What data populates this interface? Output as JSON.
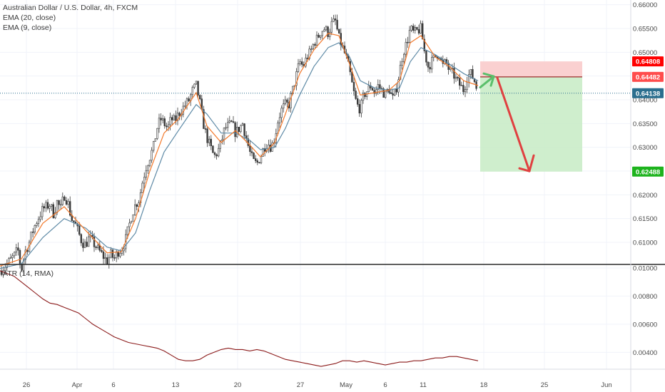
{
  "legend": {
    "symbol_line": "Australian Dollar / U.S. Dollar, 4h, FXCM",
    "ema20": "EMA (20, close)",
    "ema9": "EMA (9, close)",
    "atr": "ATR (14, RMA)"
  },
  "colors": {
    "up": "#3a3a3a",
    "down": "#3a3a3a",
    "up_fill": "#ffffff",
    "wick": "#3a3a3a",
    "ema_fast": "#f37a2c",
    "ema_slow": "#5e8aa6",
    "atr": "#8b1a1a",
    "grid": "#f0f3fa",
    "divider": "#2a2a2a",
    "stop_zone": "#f9c8c8",
    "target_zone": "#c7ebc4",
    "entry_line": "#9c2b2b",
    "arrow_up": "#5bbf6b",
    "arrow_down": "#e04040",
    "stop_tag": "#ff0000",
    "entry_tag": "#ff4d4d",
    "current_tag": "#2a6e8e",
    "target_tag": "#1db31d"
  },
  "chart_data": [
    {
      "type": "candlestick",
      "pair": "Australian Dollar / U.S. Dollar",
      "timeframe": "4h",
      "source": "FXCM",
      "ylim": [
        0.6055,
        0.661
      ],
      "y_ticks": [
        "0.66000",
        "0.65500",
        "0.65000",
        "0.64500",
        "0.64000",
        "0.63500",
        "0.63000",
        "0.62500",
        "0.62000",
        "0.61500",
        "0.61000"
      ],
      "x_tick_labels": [
        "26",
        "Apr",
        "6",
        "13",
        "20",
        "27",
        "May",
        "6",
        "11",
        "18",
        "25",
        "Jun"
      ],
      "price_tags": {
        "stop": "0.64808",
        "entry": "0.64482",
        "current": "0.64138",
        "target": "0.62488"
      },
      "price_levels": {
        "stop": 0.64808,
        "entry": 0.64482,
        "current": 0.64138,
        "target": 0.62488
      },
      "close_path": [
        [
          0,
          0.604
        ],
        [
          8,
          0.6052
        ],
        [
          15,
          0.6063
        ],
        [
          20,
          0.6072
        ],
        [
          25,
          0.6085
        ],
        [
          30,
          0.604
        ],
        [
          35,
          0.608
        ],
        [
          40,
          0.6095
        ],
        [
          45,
          0.612
        ],
        [
          50,
          0.614
        ],
        [
          55,
          0.6155
        ],
        [
          60,
          0.617
        ],
        [
          65,
          0.6175
        ],
        [
          70,
          0.618
        ],
        [
          75,
          0.616
        ],
        [
          80,
          0.6185
        ],
        [
          85,
          0.617
        ],
        [
          90,
          0.62
        ],
        [
          95,
          0.6185
        ],
        [
          100,
          0.615
        ],
        [
          105,
          0.614
        ],
        [
          110,
          0.612
        ],
        [
          115,
          0.61
        ],
        [
          120,
          0.6095
        ],
        [
          125,
          0.611
        ],
        [
          130,
          0.61
        ],
        [
          135,
          0.609
        ],
        [
          140,
          0.608
        ],
        [
          145,
          0.607
        ],
        [
          150,
          0.606
        ],
        [
          155,
          0.6075
        ],
        [
          160,
          0.6065
        ],
        [
          165,
          0.608
        ],
        [
          170,
          0.6085
        ],
        [
          175,
          0.61
        ],
        [
          180,
          0.613
        ],
        [
          185,
          0.616
        ],
        [
          190,
          0.618
        ],
        [
          195,
          0.619
        ],
        [
          200,
          0.623
        ],
        [
          205,
          0.626
        ],
        [
          210,
          0.628
        ],
        [
          215,
          0.63
        ],
        [
          220,
          0.634
        ],
        [
          225,
          0.636
        ],
        [
          230,
          0.635
        ],
        [
          235,
          0.634
        ],
        [
          240,
          0.636
        ],
        [
          245,
          0.6355
        ],
        [
          250,
          0.637
        ],
        [
          255,
          0.638
        ],
        [
          260,
          0.639
        ],
        [
          265,
          0.64
        ],
        [
          270,
          0.642
        ],
        [
          275,
          0.643
        ],
        [
          280,
          0.6395
        ],
        [
          285,
          0.635
        ],
        [
          290,
          0.632
        ],
        [
          295,
          0.63
        ],
        [
          300,
          0.628
        ],
        [
          305,
          0.629
        ],
        [
          310,
          0.631
        ],
        [
          315,
          0.634
        ],
        [
          320,
          0.6345
        ],
        [
          325,
          0.635
        ],
        [
          330,
          0.633
        ],
        [
          335,
          0.634
        ],
        [
          340,
          0.635
        ],
        [
          345,
          0.632
        ],
        [
          350,
          0.629
        ],
        [
          355,
          0.627
        ],
        [
          360,
          0.6265
        ],
        [
          365,
          0.628
        ],
        [
          370,
          0.63
        ],
        [
          375,
          0.631
        ],
        [
          380,
          0.63
        ],
        [
          385,
          0.632
        ],
        [
          390,
          0.636
        ],
        [
          395,
          0.638
        ],
        [
          400,
          0.639
        ],
        [
          405,
          0.639
        ],
        [
          410,
          0.642
        ],
        [
          415,
          0.645
        ],
        [
          420,
          0.648
        ],
        [
          425,
          0.647
        ],
        [
          430,
          0.649
        ],
        [
          435,
          0.65
        ],
        [
          440,
          0.652
        ],
        [
          445,
          0.653
        ],
        [
          450,
          0.6545
        ],
        [
          455,
          0.655
        ],
        [
          460,
          0.654
        ],
        [
          465,
          0.656
        ],
        [
          470,
          0.6565
        ],
        [
          475,
          0.653
        ],
        [
          480,
          0.651
        ],
        [
          485,
          0.649
        ],
        [
          490,
          0.646
        ],
        [
          495,
          0.642
        ],
        [
          500,
          0.639
        ],
        [
          505,
          0.638
        ],
        [
          510,
          0.641
        ],
        [
          515,
          0.642
        ],
        [
          520,
          0.643
        ],
        [
          525,
          0.6415
        ],
        [
          530,
          0.643
        ],
        [
          535,
          0.642
        ],
        [
          540,
          0.641
        ],
        [
          545,
          0.6425
        ],
        [
          550,
          0.64
        ],
        [
          555,
          0.642
        ],
        [
          560,
          0.646
        ],
        [
          565,
          0.65
        ],
        [
          570,
          0.652
        ],
        [
          575,
          0.655
        ],
        [
          580,
          0.654
        ],
        [
          585,
          0.6545
        ],
        [
          590,
          0.655
        ],
        [
          595,
          0.65
        ],
        [
          600,
          0.647
        ],
        [
          605,
          0.648
        ],
        [
          610,
          0.649
        ],
        [
          615,
          0.65
        ],
        [
          620,
          0.647
        ],
        [
          625,
          0.648
        ],
        [
          630,
          0.646
        ],
        [
          635,
          0.6455
        ],
        [
          640,
          0.644
        ],
        [
          645,
          0.643
        ],
        [
          650,
          0.642
        ],
        [
          655,
          0.645
        ],
        [
          660,
          0.6455
        ],
        [
          665,
          0.644
        ],
        [
          670,
          0.6414
        ]
      ],
      "ema_fast": [
        [
          0,
          0.605
        ],
        [
          30,
          0.6065
        ],
        [
          60,
          0.614
        ],
        [
          90,
          0.6175
        ],
        [
          120,
          0.6125
        ],
        [
          150,
          0.6078
        ],
        [
          170,
          0.608
        ],
        [
          190,
          0.615
        ],
        [
          210,
          0.625
        ],
        [
          230,
          0.633
        ],
        [
          250,
          0.636
        ],
        [
          275,
          0.6415
        ],
        [
          290,
          0.6345
        ],
        [
          310,
          0.631
        ],
        [
          330,
          0.6335
        ],
        [
          350,
          0.6305
        ],
        [
          365,
          0.628
        ],
        [
          385,
          0.631
        ],
        [
          400,
          0.637
        ],
        [
          420,
          0.6455
        ],
        [
          440,
          0.6505
        ],
        [
          460,
          0.654
        ],
        [
          475,
          0.6535
        ],
        [
          490,
          0.6475
        ],
        [
          505,
          0.641
        ],
        [
          525,
          0.6415
        ],
        [
          545,
          0.642
        ],
        [
          560,
          0.644
        ],
        [
          575,
          0.652
        ],
        [
          590,
          0.6535
        ],
        [
          610,
          0.649
        ],
        [
          630,
          0.647
        ],
        [
          650,
          0.644
        ],
        [
          670,
          0.643
        ]
      ],
      "ema_slow": [
        [
          0,
          0.6045
        ],
        [
          30,
          0.6055
        ],
        [
          60,
          0.611
        ],
        [
          90,
          0.615
        ],
        [
          120,
          0.613
        ],
        [
          150,
          0.609
        ],
        [
          170,
          0.6082
        ],
        [
          190,
          0.612
        ],
        [
          210,
          0.621
        ],
        [
          230,
          0.629
        ],
        [
          250,
          0.6335
        ],
        [
          275,
          0.639
        ],
        [
          290,
          0.637
        ],
        [
          310,
          0.633
        ],
        [
          330,
          0.633
        ],
        [
          350,
          0.6315
        ],
        [
          365,
          0.6295
        ],
        [
          385,
          0.63
        ],
        [
          400,
          0.634
        ],
        [
          420,
          0.641
        ],
        [
          440,
          0.647
        ],
        [
          460,
          0.651
        ],
        [
          475,
          0.652
        ],
        [
          490,
          0.649
        ],
        [
          505,
          0.644
        ],
        [
          525,
          0.6425
        ],
        [
          545,
          0.642
        ],
        [
          560,
          0.6425
        ],
        [
          575,
          0.648
        ],
        [
          590,
          0.651
        ],
        [
          610,
          0.6495
        ],
        [
          630,
          0.6475
        ],
        [
          650,
          0.6455
        ],
        [
          670,
          0.644
        ]
      ]
    },
    {
      "type": "line",
      "series": [
        {
          "name": "ATR (14, RMA)"
        }
      ],
      "ylim": [
        0.0028,
        0.0102
      ],
      "y_ticks": [
        "0.01000",
        "0.00800",
        "0.00600",
        "0.00400"
      ],
      "values": [
        [
          0,
          0.0098
        ],
        [
          10,
          0.0096
        ],
        [
          20,
          0.0094
        ],
        [
          30,
          0.009
        ],
        [
          40,
          0.0086
        ],
        [
          50,
          0.0082
        ],
        [
          60,
          0.0078
        ],
        [
          70,
          0.0075
        ],
        [
          80,
          0.0074
        ],
        [
          90,
          0.0072
        ],
        [
          100,
          0.007
        ],
        [
          110,
          0.0068
        ],
        [
          120,
          0.0064
        ],
        [
          130,
          0.006
        ],
        [
          140,
          0.0057
        ],
        [
          150,
          0.0054
        ],
        [
          160,
          0.0051
        ],
        [
          170,
          0.0049
        ],
        [
          180,
          0.0047
        ],
        [
          190,
          0.0046
        ],
        [
          200,
          0.0045
        ],
        [
          210,
          0.0044
        ],
        [
          220,
          0.0043
        ],
        [
          230,
          0.0041
        ],
        [
          240,
          0.0038
        ],
        [
          250,
          0.0035
        ],
        [
          260,
          0.0034
        ],
        [
          270,
          0.0034
        ],
        [
          280,
          0.0035
        ],
        [
          290,
          0.0038
        ],
        [
          300,
          0.004
        ],
        [
          310,
          0.0042
        ],
        [
          320,
          0.0043
        ],
        [
          330,
          0.0042
        ],
        [
          340,
          0.0042
        ],
        [
          350,
          0.0041
        ],
        [
          360,
          0.0042
        ],
        [
          370,
          0.0041
        ],
        [
          380,
          0.0039
        ],
        [
          390,
          0.0037
        ],
        [
          400,
          0.0035
        ],
        [
          410,
          0.0034
        ],
        [
          420,
          0.0033
        ],
        [
          430,
          0.0032
        ],
        [
          440,
          0.0031
        ],
        [
          450,
          0.003
        ],
        [
          460,
          0.0031
        ],
        [
          470,
          0.0032
        ],
        [
          480,
          0.0034
        ],
        [
          490,
          0.0034
        ],
        [
          500,
          0.0033
        ],
        [
          510,
          0.0034
        ],
        [
          520,
          0.0033
        ],
        [
          530,
          0.0032
        ],
        [
          540,
          0.0031
        ],
        [
          550,
          0.0032
        ],
        [
          560,
          0.0033
        ],
        [
          570,
          0.0033
        ],
        [
          580,
          0.0034
        ],
        [
          590,
          0.0034
        ],
        [
          600,
          0.0035
        ],
        [
          610,
          0.0036
        ],
        [
          620,
          0.0036
        ],
        [
          630,
          0.0037
        ],
        [
          640,
          0.0037
        ],
        [
          650,
          0.0036
        ],
        [
          660,
          0.0035
        ],
        [
          670,
          0.0034
        ]
      ]
    }
  ]
}
